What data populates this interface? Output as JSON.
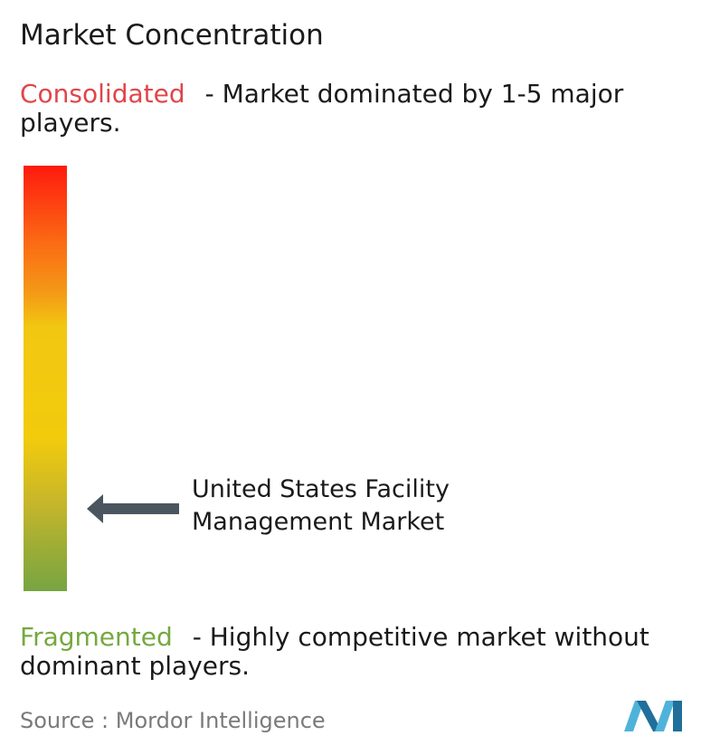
{
  "chart_data": {
    "type": "gradient-scale",
    "title": "Market Concentration",
    "top_label": {
      "keyword": "Consolidated",
      "description": "- Market dominated by 1-5 major players."
    },
    "bottom_label": {
      "keyword": "Fragmented",
      "description": "- Highly competitive market without dominant players."
    },
    "marker": {
      "label_line1": "United States Facility",
      "label_line2": "Management Market",
      "position_fraction_from_top": 0.8
    },
    "colors": {
      "consolidated": "#e0454a",
      "fragmented": "#75a83f",
      "gradient_top": "#ff1a0e",
      "gradient_middle": "#f2cb0c",
      "gradient_bottom": "#77a542",
      "arrow": "#4a5560"
    }
  },
  "source": {
    "label": "Source : ",
    "name": "Mordor Intelligence"
  },
  "logo": {
    "icon": "mordor-intelligence-logo-icon",
    "color_light": "#4fb3d9",
    "color_dark": "#1f6f9a"
  }
}
